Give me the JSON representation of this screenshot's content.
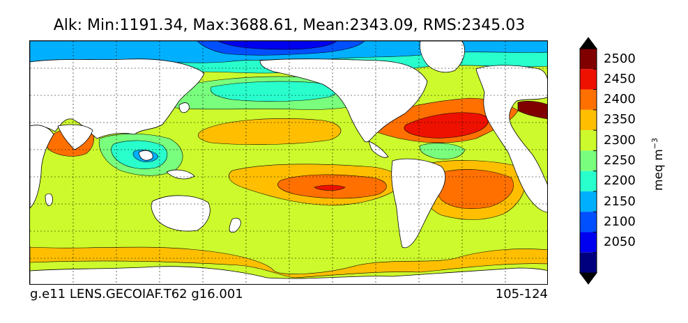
{
  "figure": {
    "title": "Alk: Min:1191.34, Max:3688.61, Mean:2343.09, RMS:2345.03",
    "case_name": "g.e11 LENS.GECOIAF.T62 g16.001",
    "years": "105-124"
  },
  "colorbar": {
    "units_base": "meq m",
    "units_exponent": "−3",
    "levels": [
      {
        "value": 2500,
        "label": "2500",
        "color": "#800000"
      },
      {
        "value": 2450,
        "label": "2450",
        "color": "#ee1100"
      },
      {
        "value": 2400,
        "label": "2400",
        "color": "#ff7000"
      },
      {
        "value": 2350,
        "label": "2350",
        "color": "#ffbf00"
      },
      {
        "value": 2300,
        "label": "2300",
        "color": "#cdfa2c"
      },
      {
        "value": 2250,
        "label": "2250",
        "color": "#79ff7d"
      },
      {
        "value": 2200,
        "label": "2200",
        "color": "#29ffcd"
      },
      {
        "value": 2150,
        "label": "2150",
        "color": "#00b0ff"
      },
      {
        "value": 2100,
        "label": "2100",
        "color": "#0050ff"
      },
      {
        "value": 2050,
        "label": "2050",
        "color": "#0000f0"
      }
    ],
    "below_color": "#000080",
    "above_extend_color": "#000000",
    "bottom_color": "#00007f"
  },
  "map": {
    "land_color": "#ffffff",
    "grid_style": "dotted"
  }
}
